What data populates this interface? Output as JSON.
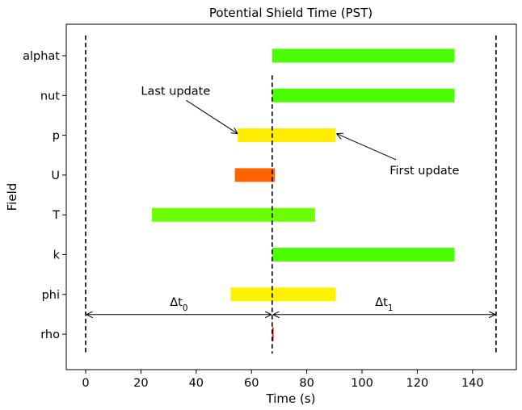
{
  "chart_data": {
    "type": "bar",
    "orientation": "horizontal",
    "title": "Potential Shield Time (PST)",
    "xlabel": "Time (s)",
    "ylabel": "Field",
    "xlim": [
      -7,
      156
    ],
    "xticks": [
      0,
      20,
      40,
      60,
      80,
      100,
      120,
      140
    ],
    "grid": false,
    "categories": [
      "alphat",
      "nut",
      "p",
      "U",
      "T",
      "k",
      "phi",
      "rho"
    ],
    "bars": [
      {
        "field": "alphat",
        "start": 67.5,
        "end": 133.5,
        "color": "#4cff00"
      },
      {
        "field": "nut",
        "start": 67.5,
        "end": 133.5,
        "color": "#4cff00"
      },
      {
        "field": "p",
        "start": 55.0,
        "end": 90.5,
        "color": "#ffec00"
      },
      {
        "field": "U",
        "start": 54.0,
        "end": 68.5,
        "color": "#ff6400"
      },
      {
        "field": "T",
        "start": 24.0,
        "end": 83.0,
        "color": "#6cff00"
      },
      {
        "field": "k",
        "start": 67.5,
        "end": 133.5,
        "color": "#4cff00"
      },
      {
        "field": "phi",
        "start": 52.5,
        "end": 90.5,
        "color": "#fff200"
      },
      {
        "field": "rho",
        "start": 67.5,
        "end": 68.0,
        "color": "#ff0000"
      }
    ],
    "reference_lines": [
      {
        "x": 0,
        "from": "alphat",
        "to": "rho"
      },
      {
        "x": 67.5,
        "from": "nut",
        "to": "rho"
      },
      {
        "x": 148.5,
        "from": "alphat",
        "to": "rho"
      }
    ],
    "spans": [
      {
        "from": 0,
        "to": 67.5,
        "label": "Δt_0",
        "base": "Δt",
        "sub": "0"
      },
      {
        "from": 67.5,
        "to": 148.5,
        "label": "Δt_1",
        "base": "Δt",
        "sub": "1"
      }
    ],
    "annotations": [
      {
        "text": "Last update",
        "text_x": 20,
        "text_field": "nut",
        "target_x": 55.0,
        "target_field": "p"
      },
      {
        "text": "First update",
        "text_x": 110,
        "text_field": "U",
        "target_x": 90.5,
        "target_field": "p"
      }
    ]
  }
}
